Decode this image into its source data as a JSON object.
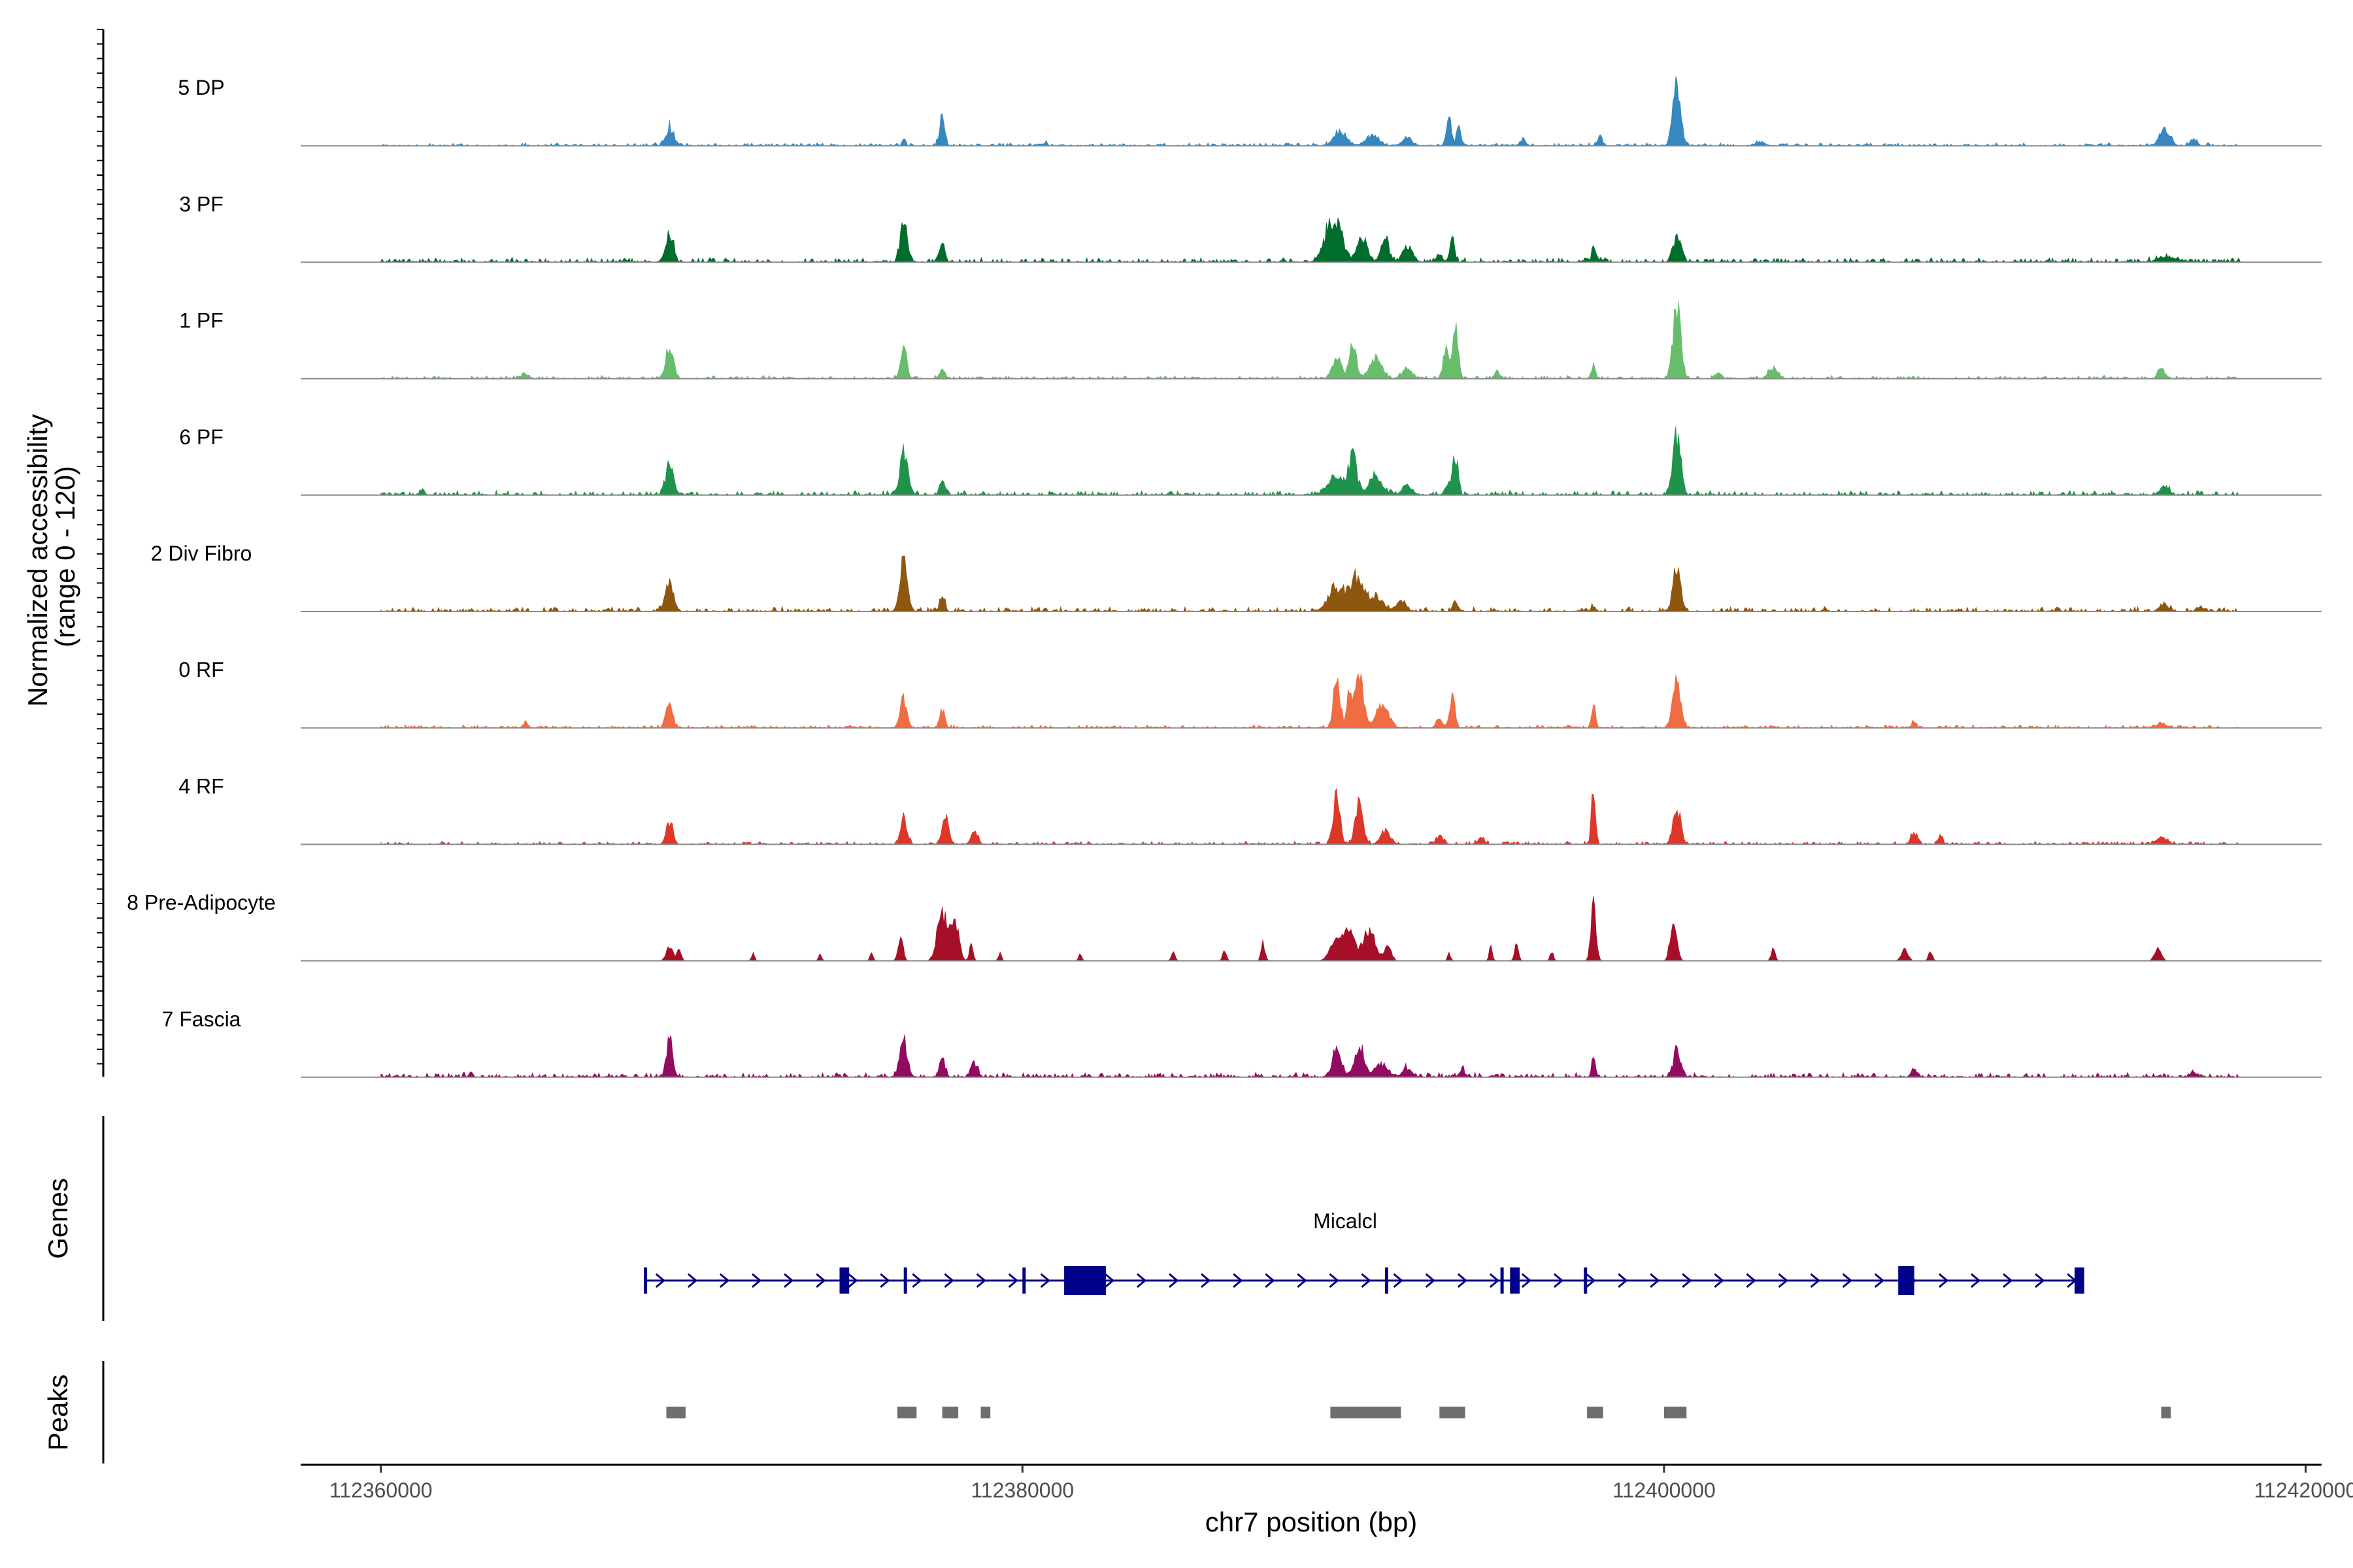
{
  "chart_data": {
    "type": "area",
    "title": "",
    "xlabel": "chr7 position (bp)",
    "ylabel": "Normalized accessibility\n(range 0 - 120)",
    "ylabel_lines": [
      "Normalized accessibility",
      "(range 0 - 120)"
    ],
    "ylim": [
      0,
      120
    ],
    "xlim": [
      112357500,
      112420500
    ],
    "x_ticks": [
      112360000,
      112380000,
      112400000,
      112420000
    ],
    "x_tick_labels": [
      "112360000",
      "112380000",
      "112400000",
      "112420000"
    ],
    "track_start": 112360000,
    "track_end": 112418000,
    "tracks": [
      {
        "name": "5 DP",
        "color": "#3787c0",
        "baseline": 2,
        "peaks": [
          [
            112369000,
            120,
            28
          ],
          [
            112376300,
            50,
            10
          ],
          [
            112377500,
            80,
            45
          ],
          [
            112380700,
            60,
            4
          ],
          [
            112389900,
            200,
            20
          ],
          [
            112390900,
            200,
            16
          ],
          [
            112392000,
            150,
            12
          ],
          [
            112393300,
            80,
            38
          ],
          [
            112393600,
            60,
            30
          ],
          [
            112395600,
            100,
            8
          ],
          [
            112398000,
            80,
            14
          ],
          [
            112400400,
            120,
            100
          ],
          [
            112403000,
            150,
            6
          ],
          [
            112415600,
            150,
            28
          ],
          [
            112416500,
            100,
            10
          ]
        ]
      },
      {
        "name": "3 PF",
        "color": "#006d2c",
        "baseline": 3,
        "peaks": [
          [
            112369000,
            120,
            42
          ],
          [
            112376300,
            100,
            70
          ],
          [
            112377500,
            80,
            30
          ],
          [
            112389700,
            250,
            65
          ],
          [
            112390600,
            150,
            40
          ],
          [
            112391300,
            120,
            35
          ],
          [
            112392000,
            150,
            25
          ],
          [
            112393000,
            100,
            10
          ],
          [
            112393400,
            80,
            32
          ],
          [
            112397800,
            60,
            24
          ],
          [
            112400400,
            120,
            42
          ],
          [
            112415700,
            300,
            8
          ]
        ]
      },
      {
        "name": "1 PF",
        "color": "#67bd6b",
        "baseline": 2,
        "peaks": [
          [
            112364500,
            100,
            8
          ],
          [
            112369000,
            120,
            50
          ],
          [
            112376300,
            100,
            45
          ],
          [
            112377500,
            80,
            15
          ],
          [
            112389800,
            150,
            30
          ],
          [
            112390300,
            100,
            58
          ],
          [
            112391000,
            200,
            30
          ],
          [
            112392000,
            150,
            15
          ],
          [
            112393200,
            80,
            48
          ],
          [
            112393500,
            80,
            85
          ],
          [
            112394800,
            100,
            10
          ],
          [
            112397800,
            60,
            20
          ],
          [
            112400400,
            120,
            115
          ],
          [
            112401700,
            100,
            8
          ],
          [
            112403400,
            150,
            15
          ],
          [
            112415500,
            100,
            15
          ]
        ]
      },
      {
        "name": "6 PF",
        "color": "#1f934b",
        "baseline": 3,
        "peaks": [
          [
            112361300,
            60,
            10
          ],
          [
            112369000,
            120,
            45
          ],
          [
            112376300,
            120,
            65
          ],
          [
            112377500,
            80,
            25
          ],
          [
            112389800,
            250,
            25
          ],
          [
            112390300,
            120,
            60
          ],
          [
            112391000,
            200,
            30
          ],
          [
            112392000,
            150,
            15
          ],
          [
            112393300,
            120,
            15
          ],
          [
            112393500,
            80,
            58
          ],
          [
            112400400,
            120,
            88
          ],
          [
            112415600,
            150,
            12
          ]
        ]
      },
      {
        "name": "2 Div Fibro",
        "color": "#8e5711",
        "baseline": 3,
        "peaks": [
          [
            112369000,
            120,
            45
          ],
          [
            112376300,
            120,
            72
          ],
          [
            112377500,
            80,
            25
          ],
          [
            112389800,
            250,
            35
          ],
          [
            112390400,
            200,
            45
          ],
          [
            112391000,
            250,
            22
          ],
          [
            112391800,
            150,
            15
          ],
          [
            112393500,
            80,
            15
          ],
          [
            112397800,
            60,
            8
          ],
          [
            112400400,
            120,
            62
          ],
          [
            112415600,
            150,
            10
          ],
          [
            112416700,
            100,
            8
          ]
        ]
      },
      {
        "name": "0 RF",
        "color": "#f06d43",
        "baseline": 2,
        "peaks": [
          [
            112364500,
            80,
            6
          ],
          [
            112369000,
            100,
            40
          ],
          [
            112376300,
            100,
            45
          ],
          [
            112377500,
            80,
            28
          ],
          [
            112389800,
            100,
            80
          ],
          [
            112390200,
            80,
            65
          ],
          [
            112390500,
            120,
            90
          ],
          [
            112391200,
            200,
            35
          ],
          [
            112393000,
            100,
            15
          ],
          [
            112393400,
            80,
            45
          ],
          [
            112397800,
            60,
            40
          ],
          [
            112400400,
            120,
            75
          ],
          [
            112407800,
            60,
            10
          ],
          [
            112415500,
            150,
            8
          ]
        ]
      },
      {
        "name": "4 RF",
        "color": "#dc3729",
        "baseline": 2,
        "peaks": [
          [
            112369000,
            100,
            35
          ],
          [
            112376300,
            100,
            40
          ],
          [
            112377600,
            100,
            45
          ],
          [
            112378500,
            100,
            20
          ],
          [
            112389800,
            100,
            78
          ],
          [
            112390500,
            120,
            68
          ],
          [
            112391300,
            150,
            20
          ],
          [
            112393000,
            120,
            12
          ],
          [
            112394300,
            100,
            10
          ],
          [
            112397800,
            60,
            95
          ],
          [
            112400400,
            120,
            55
          ],
          [
            112407800,
            100,
            18
          ],
          [
            112408600,
            80,
            12
          ],
          [
            112415500,
            150,
            10
          ]
        ]
      },
      {
        "name": "8 Pre-Adipocyte",
        "color": "#a50f28",
        "baseline": 0,
        "peaks": [
          [
            112369000,
            100,
            22
          ],
          [
            112369300,
            60,
            22
          ],
          [
            112371600,
            50,
            12
          ],
          [
            112373700,
            50,
            10
          ],
          [
            112375300,
            50,
            12
          ],
          [
            112376200,
            80,
            35
          ],
          [
            112377500,
            150,
            78
          ],
          [
            112377900,
            120,
            60
          ],
          [
            112378400,
            60,
            25
          ],
          [
            112379300,
            50,
            12
          ],
          [
            112381800,
            50,
            10
          ],
          [
            112384700,
            60,
            12
          ],
          [
            112386300,
            60,
            15
          ],
          [
            112387500,
            60,
            28
          ],
          [
            112389800,
            200,
            30
          ],
          [
            112390200,
            150,
            42
          ],
          [
            112390800,
            200,
            45
          ],
          [
            112391400,
            100,
            25
          ],
          [
            112393300,
            50,
            12
          ],
          [
            112394600,
            50,
            22
          ],
          [
            112395400,
            60,
            25
          ],
          [
            112396500,
            50,
            15
          ],
          [
            112397800,
            80,
            85
          ],
          [
            112400300,
            100,
            68
          ],
          [
            112403400,
            60,
            20
          ],
          [
            112407500,
            100,
            18
          ],
          [
            112408300,
            60,
            15
          ],
          [
            112415400,
            100,
            20
          ]
        ]
      },
      {
        "name": "7 Fascia",
        "color": "#920b61",
        "baseline": 3,
        "peaks": [
          [
            112362800,
            60,
            8
          ],
          [
            112369000,
            100,
            55
          ],
          [
            112376300,
            120,
            55
          ],
          [
            112377500,
            80,
            32
          ],
          [
            112378500,
            100,
            20
          ],
          [
            112389800,
            150,
            40
          ],
          [
            112390500,
            150,
            45
          ],
          [
            112391200,
            200,
            20
          ],
          [
            112392000,
            150,
            12
          ],
          [
            112393700,
            80,
            12
          ],
          [
            112397800,
            60,
            30
          ],
          [
            112400400,
            120,
            38
          ],
          [
            112407800,
            100,
            10
          ],
          [
            112416500,
            100,
            10
          ]
        ]
      }
    ],
    "genes": {
      "label": "Micalcl",
      "color": "#000088",
      "start": 112368200,
      "end": 112413000,
      "strand": "+",
      "exons": [
        [
          112368200,
          112368300
        ],
        [
          112374300,
          112374600
        ],
        [
          112376300,
          112376400
        ],
        [
          112380000,
          112380100
        ],
        [
          112381300,
          112382600
        ],
        [
          112391300,
          112391400
        ],
        [
          112394900,
          112395000
        ],
        [
          112395200,
          112395500
        ],
        [
          112397500,
          112397600
        ],
        [
          112407300,
          112407800
        ],
        [
          112412800,
          112413100
        ]
      ]
    },
    "peaks_track": {
      "color": "#6e6e6e",
      "regions": [
        [
          112368900,
          112369500
        ],
        [
          112376100,
          112376700
        ],
        [
          112377500,
          112378000
        ],
        [
          112378700,
          112379000
        ],
        [
          112389600,
          112391800
        ],
        [
          112393000,
          112393800
        ],
        [
          112397600,
          112398100
        ],
        [
          112400000,
          112400700
        ],
        [
          112415500,
          112415800
        ]
      ]
    },
    "panels": {
      "coverage": "Normalized accessibility (range 0 - 120)",
      "genes": "Genes",
      "peaks": "Peaks"
    }
  }
}
